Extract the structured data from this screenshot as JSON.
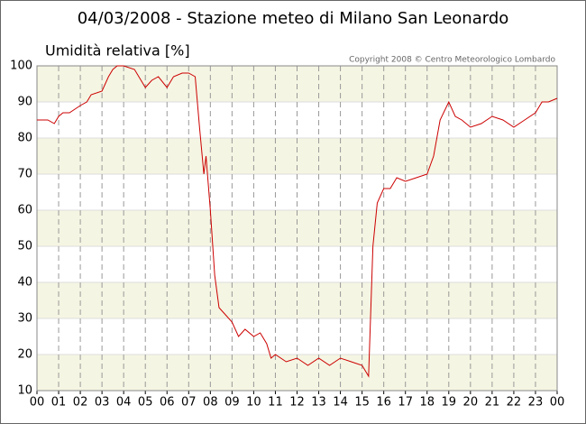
{
  "chart_data": {
    "type": "line",
    "title": "04/03/2008 - Stazione meteo di Milano San Leonardo",
    "y_label": "Umidità relativa [%]",
    "copyright": "Copyright 2008 © Centro Meteorologico Lombardo",
    "x": [
      0,
      0.5,
      0.8,
      1.0,
      1.2,
      1.5,
      2,
      2.3,
      2.5,
      3,
      3.3,
      3.5,
      3.7,
      4,
      4.5,
      5,
      5.3,
      5.6,
      6,
      6.3,
      6.7,
      7,
      7.3,
      7.5,
      7.7,
      7.8,
      8.0,
      8.2,
      8.4,
      8.7,
      9,
      9.3,
      9.6,
      10,
      10.3,
      10.6,
      10.8,
      11,
      11.5,
      12,
      12.5,
      13,
      13.5,
      14,
      14.5,
      15,
      15.3,
      15.5,
      15.7,
      16,
      16.3,
      16.6,
      17,
      17.5,
      18,
      18.3,
      18.6,
      19,
      19.3,
      19.6,
      20,
      20.5,
      21,
      21.5,
      22,
      22.5,
      23,
      23.3,
      23.6,
      24
    ],
    "series": [
      {
        "name": "Umidità relativa",
        "color": "#cc0000",
        "values": [
          85,
          85,
          84,
          86,
          87,
          87,
          89,
          90,
          92,
          93,
          97,
          99,
          100,
          100,
          99,
          94,
          96,
          97,
          94,
          97,
          98,
          98,
          97,
          83,
          70,
          75,
          60,
          42,
          33,
          31,
          29,
          25,
          27,
          25,
          26,
          23,
          19,
          20,
          18,
          19,
          17,
          19,
          17,
          19,
          18,
          17,
          14,
          50,
          62,
          66,
          66,
          69,
          68,
          69,
          70,
          75,
          85,
          90,
          86,
          85,
          83,
          84,
          86,
          85,
          83,
          85,
          87,
          90,
          90,
          91
        ]
      }
    ],
    "xlim": [
      0,
      24
    ],
    "xticks": [
      {
        "value": 0,
        "label": "00"
      },
      {
        "value": 1,
        "label": "01"
      },
      {
        "value": 2,
        "label": "02"
      },
      {
        "value": 3,
        "label": "03"
      },
      {
        "value": 4,
        "label": "04"
      },
      {
        "value": 5,
        "label": "05"
      },
      {
        "value": 6,
        "label": "06"
      },
      {
        "value": 7,
        "label": "07"
      },
      {
        "value": 8,
        "label": "08"
      },
      {
        "value": 9,
        "label": "09"
      },
      {
        "value": 10,
        "label": "10"
      },
      {
        "value": 11,
        "label": "11"
      },
      {
        "value": 12,
        "label": "12"
      },
      {
        "value": 13,
        "label": "13"
      },
      {
        "value": 14,
        "label": "14"
      },
      {
        "value": 15,
        "label": "15"
      },
      {
        "value": 16,
        "label": "16"
      },
      {
        "value": 17,
        "label": "17"
      },
      {
        "value": 18,
        "label": "18"
      },
      {
        "value": 19,
        "label": "19"
      },
      {
        "value": 20,
        "label": "20"
      },
      {
        "value": 21,
        "label": "21"
      },
      {
        "value": 22,
        "label": "22"
      },
      {
        "value": 23,
        "label": "23"
      },
      {
        "value": 24,
        "label": "00"
      }
    ],
    "ylim": [
      10,
      100
    ],
    "yticks": [
      10,
      20,
      30,
      40,
      50,
      60,
      70,
      80,
      90,
      100
    ],
    "grid": true,
    "band_color": "#f5f5e3"
  }
}
